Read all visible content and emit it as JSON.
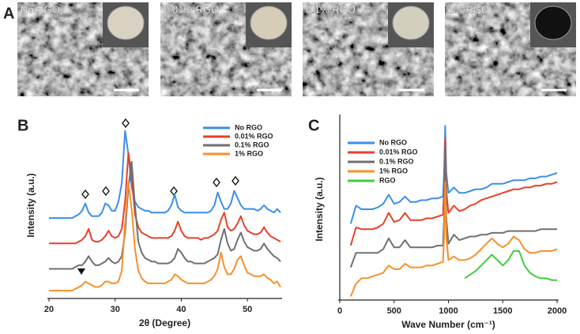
{
  "panel_a": {
    "label": "A",
    "images": [
      "No RGO",
      "0.01% RGO",
      "0.1% RGO",
      "1% RGO"
    ]
  },
  "chart_data": [
    {
      "type": "line",
      "label": "B",
      "x_label": "2θ (Degree)",
      "y_label": "Intensity (a.u.)",
      "xlim": [
        20,
        55
      ],
      "xticks": [
        20,
        30,
        40,
        50
      ],
      "ylim": [
        0,
        100
      ],
      "legend": "top-right",
      "x": [
        20,
        20.5,
        21,
        21.5,
        22,
        22.5,
        23,
        23.5,
        24,
        24.5,
        25,
        25.5,
        26,
        26.5,
        27,
        27.5,
        28,
        28.5,
        29,
        29.5,
        30,
        30.5,
        31,
        31.5,
        32,
        32.5,
        33,
        33.5,
        34,
        34.5,
        35,
        35.5,
        36,
        36.5,
        37,
        37.5,
        38,
        38.5,
        39,
        39.5,
        40,
        40.5,
        41,
        41.5,
        42,
        42.5,
        43,
        43.5,
        44,
        44.5,
        45,
        45.5,
        46,
        46.5,
        47,
        47.5,
        48,
        48.5,
        49,
        49.5,
        50,
        50.5,
        51,
        51.5,
        52,
        52.5,
        53,
        53.5,
        54,
        54.5,
        55
      ],
      "series": [
        {
          "name": "No RGO",
          "color": "#3d8ee8",
          "values": [
            43,
            43,
            43,
            43,
            43,
            43,
            43,
            43,
            44,
            45,
            47,
            51,
            46,
            44,
            44,
            44,
            46,
            51,
            50,
            47,
            47,
            52,
            62,
            91,
            78,
            60,
            52,
            49,
            48,
            47,
            47,
            46,
            46,
            46,
            46,
            46,
            47,
            50,
            56,
            49,
            47,
            46,
            46,
            46,
            46,
            46,
            46,
            46,
            46,
            47,
            50,
            57,
            52,
            48,
            48,
            51,
            58,
            54,
            50,
            48,
            48,
            48,
            48,
            47,
            48,
            50,
            48,
            47,
            46,
            48,
            46
          ]
        },
        {
          "name": "0.01% RGO",
          "color": "#e8402a",
          "values": [
            29,
            29,
            29,
            29,
            29,
            29,
            29,
            29,
            29,
            30,
            31,
            33,
            37,
            31,
            30,
            30,
            31,
            33,
            36,
            33,
            32,
            33,
            37,
            52,
            79,
            66,
            45,
            38,
            35,
            34,
            33,
            32,
            32,
            32,
            32,
            32,
            32,
            33,
            36,
            41,
            36,
            33,
            32,
            32,
            32,
            32,
            31,
            32,
            32,
            33,
            34,
            36,
            42,
            46,
            38,
            36,
            37,
            40,
            44,
            39,
            36,
            35,
            34,
            34,
            35,
            38,
            35,
            33,
            32,
            31,
            30
          ]
        },
        {
          "name": "0.1% RGO",
          "color": "#707070",
          "values": [
            15,
            15,
            15,
            15,
            15,
            15,
            15,
            15,
            16,
            17,
            17,
            19,
            22,
            19,
            17,
            17,
            18,
            19,
            21,
            19,
            18,
            19,
            22,
            35,
            60,
            74,
            50,
            30,
            24,
            21,
            20,
            19,
            19,
            18,
            18,
            18,
            18,
            19,
            21,
            26,
            24,
            21,
            19,
            19,
            18,
            18,
            18,
            18,
            19,
            20,
            21,
            23,
            31,
            37,
            29,
            25,
            26,
            31,
            35,
            30,
            27,
            26,
            25,
            25,
            26,
            29,
            26,
            24,
            22,
            21,
            19
          ]
        },
        {
          "name": "1% RGO",
          "color": "#f7902a",
          "values": [
            3,
            3,
            3,
            3,
            3,
            3,
            3,
            3,
            4,
            5,
            6,
            8,
            7,
            6,
            5,
            5,
            6,
            8,
            8,
            7,
            7,
            8,
            14,
            40,
            63,
            48,
            26,
            14,
            10,
            8,
            7,
            7,
            7,
            7,
            7,
            7,
            8,
            9,
            12,
            11,
            9,
            8,
            7,
            7,
            7,
            7,
            7,
            7,
            8,
            9,
            11,
            15,
            24,
            16,
            12,
            12,
            15,
            20,
            22,
            17,
            13,
            12,
            11,
            11,
            11,
            12,
            10,
            9,
            7,
            8,
            5
          ]
        }
      ]
    },
    {
      "type": "line",
      "label": "C",
      "x_label": "Wave Number (cm⁻¹)",
      "y_label": "Intensity (a.u.)",
      "xlim": [
        0,
        2000
      ],
      "xticks": [
        0,
        500,
        1000,
        1500,
        2000
      ],
      "ylim": [
        0,
        100
      ],
      "legend": "top-left",
      "x": [
        100,
        150,
        200,
        250,
        300,
        350,
        400,
        450,
        500,
        550,
        600,
        650,
        700,
        750,
        800,
        850,
        900,
        950,
        960,
        970,
        980,
        1000,
        1050,
        1100,
        1150,
        1200,
        1250,
        1300,
        1350,
        1400,
        1450,
        1500,
        1550,
        1600,
        1650,
        1700,
        1750,
        1800,
        1850,
        1900,
        1950,
        2000
      ],
      "series": [
        {
          "name": "No RGO",
          "color": "#3d8ee8",
          "values": [
            42,
            52,
            50,
            50,
            50,
            51,
            53,
            58,
            53,
            54,
            57,
            54,
            54,
            55,
            55,
            56,
            56,
            57,
            70,
            96,
            70,
            59,
            62,
            59,
            59,
            60,
            61,
            61,
            62,
            64,
            64,
            64,
            65,
            66,
            66,
            66,
            67,
            67,
            68,
            68,
            69,
            70
          ]
        },
        {
          "name": "0.01% RGO",
          "color": "#e8402a",
          "values": [
            30,
            40,
            39,
            39,
            39,
            40,
            42,
            48,
            43,
            44,
            48,
            44,
            44,
            44,
            45,
            45,
            46,
            47,
            60,
            89,
            60,
            48,
            52,
            49,
            50,
            52,
            53,
            55,
            56,
            57,
            58,
            59,
            60,
            61,
            61,
            62,
            62,
            63,
            63,
            64,
            64,
            65
          ]
        },
        {
          "name": "0.1% RGO",
          "color": "#707070",
          "values": [
            18,
            26,
            26,
            26,
            26,
            26,
            28,
            34,
            29,
            29,
            33,
            29,
            29,
            29,
            29,
            29,
            30,
            30,
            45,
            85,
            45,
            31,
            36,
            33,
            34,
            35,
            35,
            36,
            36,
            37,
            37,
            37,
            38,
            38,
            38,
            38,
            38,
            38,
            39,
            39,
            39,
            39
          ]
        },
        {
          "name": "1% RGO",
          "color": "#f7902a",
          "values": [
            2,
            9,
            12,
            12,
            13,
            14,
            15,
            19,
            17,
            17,
            20,
            18,
            18,
            18,
            19,
            19,
            20,
            21,
            35,
            65,
            35,
            22,
            24,
            22,
            22,
            23,
            25,
            28,
            31,
            34,
            31,
            29,
            31,
            35,
            33,
            28,
            26,
            26,
            27,
            27,
            27,
            28
          ]
        },
        {
          "name": "RGO",
          "color": "#3ccf3c",
          "values": [
            null,
            null,
            null,
            null,
            null,
            null,
            null,
            null,
            null,
            null,
            null,
            null,
            null,
            null,
            null,
            null,
            null,
            null,
            null,
            null,
            null,
            null,
            null,
            null,
            12,
            14,
            16,
            19,
            22,
            25,
            22,
            19,
            22,
            27,
            27,
            19,
            15,
            13,
            12,
            12,
            11,
            11
          ]
        }
      ]
    }
  ]
}
